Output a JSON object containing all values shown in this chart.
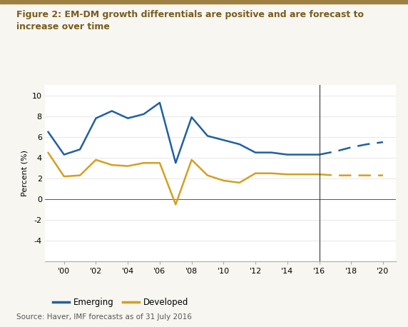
{
  "title": "Figure 2: EM-DM growth differentials are positive and are forecast to\nincrease over time",
  "source": "Source: Haver, IMF forecasts as of 31 July 2016",
  "ylabel": "Percent (%)",
  "ylim": [
    -6,
    11
  ],
  "yticks": [
    -4,
    -2,
    0,
    2,
    4,
    6,
    8,
    10
  ],
  "xlim": [
    1998.8,
    2020.8
  ],
  "vline_x": 2016,
  "background_color": "#f7f6f1",
  "plot_bg_color": "#ffffff",
  "emerging_color": "#2060a0",
  "developed_color": "#d4a020",
  "title_color": "#7a5c1e",
  "top_bar_color": "#9e8040",
  "emerging_solid_x": [
    1999,
    2000,
    2001,
    2002,
    2003,
    2004,
    2005,
    2006,
    2007,
    2008,
    2009,
    2010,
    2011,
    2012,
    2013,
    2014,
    2015,
    2016
  ],
  "emerging_solid_y": [
    6.5,
    4.3,
    4.8,
    7.8,
    8.5,
    7.8,
    8.2,
    9.3,
    3.5,
    7.9,
    6.1,
    5.7,
    5.3,
    4.5,
    4.5,
    4.3,
    4.3,
    4.3
  ],
  "emerging_dash_x": [
    2016,
    2017,
    2018,
    2019,
    2020
  ],
  "emerging_dash_y": [
    4.3,
    4.6,
    5.0,
    5.3,
    5.5
  ],
  "developed_solid_x": [
    1999,
    2000,
    2001,
    2002,
    2003,
    2004,
    2005,
    2006,
    2007,
    2008,
    2009,
    2010,
    2011,
    2012,
    2013,
    2014,
    2015,
    2016
  ],
  "developed_solid_y": [
    4.5,
    2.2,
    2.3,
    3.8,
    3.3,
    3.2,
    3.5,
    3.5,
    -0.5,
    3.8,
    2.3,
    1.8,
    1.6,
    2.5,
    2.5,
    2.4,
    2.4,
    2.4
  ],
  "developed_dash_x": [
    2016,
    2017,
    2018,
    2019,
    2020
  ],
  "developed_dash_y": [
    2.4,
    2.3,
    2.3,
    2.3,
    2.3
  ],
  "xtick_years": [
    2000,
    2002,
    2004,
    2006,
    2008,
    2010,
    2012,
    2014,
    2016,
    2018,
    2020
  ],
  "xtick_labels": [
    "'00",
    "'02",
    "'04",
    "'06",
    "'08",
    "'10",
    "'12",
    "'14",
    "'16",
    "'18",
    "'20"
  ]
}
